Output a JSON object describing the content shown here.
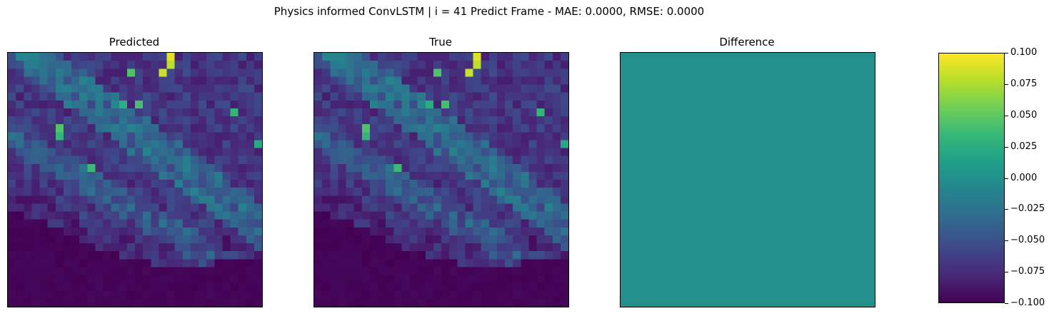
{
  "figure": {
    "suptitle": "Physics informed ConvLSTM | i = 41 Predict Frame - MAE: 0.0000, RMSE: 0.0000"
  },
  "panels": {
    "predicted_title": "Predicted",
    "true_title": "True",
    "difference_title": "Difference"
  },
  "colorbar": {
    "colormap": "viridis",
    "vmin": -0.1,
    "vmax": 0.1,
    "tick_labels": [
      "0.100",
      "0.075",
      "0.050",
      "0.025",
      "0.000",
      "−0.025",
      "−0.050",
      "−0.075",
      "−0.100"
    ]
  },
  "chart_data": [
    {
      "type": "heatmap",
      "title": "Predicted",
      "grid": "32x32",
      "colormap": "viridis",
      "xticks": false,
      "yticks": false,
      "notes_hotspots": [
        [
          20,
          0
        ],
        [
          20,
          1
        ],
        [
          19,
          2
        ],
        [
          15,
          2
        ],
        [
          16,
          6
        ],
        [
          14,
          6
        ],
        [
          28,
          7
        ],
        [
          6,
          9
        ],
        [
          6,
          10
        ],
        [
          31,
          11
        ],
        [
          10,
          14
        ]
      ]
    },
    {
      "type": "heatmap",
      "title": "True",
      "grid": "32x32",
      "colormap": "viridis",
      "xticks": false,
      "yticks": false
    },
    {
      "type": "heatmap",
      "title": "Difference",
      "colormap": "viridis",
      "vmin": -0.1,
      "vmax": 0.1,
      "uniform_value": 0.0,
      "xticks": false,
      "yticks": false
    }
  ]
}
